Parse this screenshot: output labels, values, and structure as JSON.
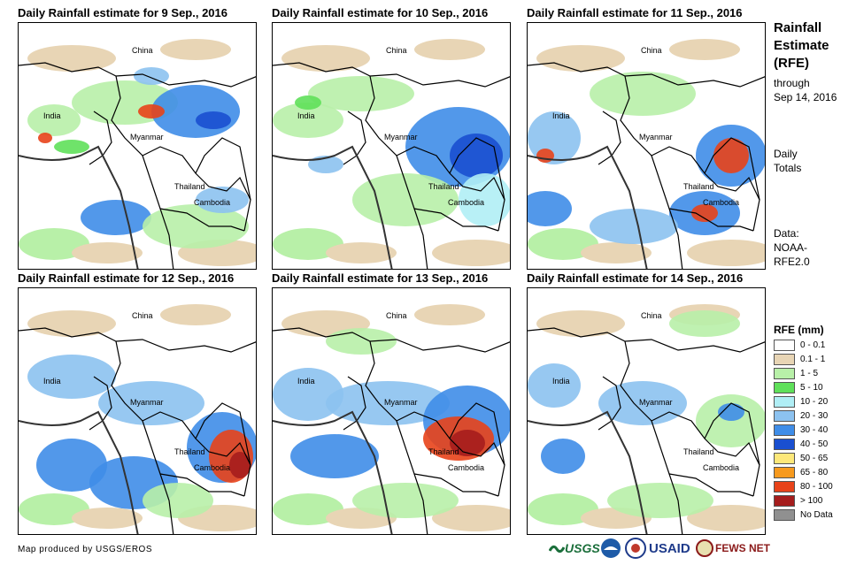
{
  "panels": [
    {
      "title": "Daily Rainfall estimate for 9 Sep., 2016"
    },
    {
      "title": "Daily Rainfall estimate for 10 Sep., 2016"
    },
    {
      "title": "Daily Rainfall estimate for 11 Sep., 2016"
    },
    {
      "title": "Daily Rainfall estimate for 12 Sep., 2016"
    },
    {
      "title": "Daily Rainfall estimate for 13 Sep., 2016"
    },
    {
      "title": "Daily Rainfall estimate for 14 Sep., 2016"
    }
  ],
  "map_labels": {
    "china": "China",
    "india": "India",
    "myanmar": "Myanmar",
    "thailand": "Thailand",
    "cambodia": "Cambodia"
  },
  "side": {
    "title_lines": [
      "Rainfall",
      "Estimate",
      "(RFE)"
    ],
    "through": "through",
    "date": "Sep 14, 2016",
    "daily_lines": [
      "Daily",
      "Totals"
    ],
    "data_lines": [
      "Data:",
      "NOAA-",
      "RFE2.0"
    ]
  },
  "legend": {
    "title": "RFE (mm)",
    "items": [
      {
        "label": "0 - 0.1",
        "color": "#ffffff"
      },
      {
        "label": "0.1 - 1",
        "color": "#e8d5b5"
      },
      {
        "label": "1 - 5",
        "color": "#b8f0a8"
      },
      {
        "label": "5 - 10",
        "color": "#5fe05a"
      },
      {
        "label": "10 - 20",
        "color": "#b0eef5"
      },
      {
        "label": "20 - 30",
        "color": "#8cc2f0"
      },
      {
        "label": "30 - 40",
        "color": "#3f8de8"
      },
      {
        "label": "40 - 50",
        "color": "#1a4fd0"
      },
      {
        "label": "50 - 65",
        "color": "#fde87a"
      },
      {
        "label": "65 - 80",
        "color": "#f79a1e"
      },
      {
        "label": "80 - 100",
        "color": "#e8431a"
      },
      {
        "label": "> 100",
        "color": "#a51d1d"
      },
      {
        "label": "No Data",
        "color": "#909090"
      }
    ]
  },
  "footer": "Map produced by USGS/EROS",
  "logos": {
    "usgs": "USGS",
    "usaid": "USAID",
    "fewsnet": "FEWS NET"
  }
}
